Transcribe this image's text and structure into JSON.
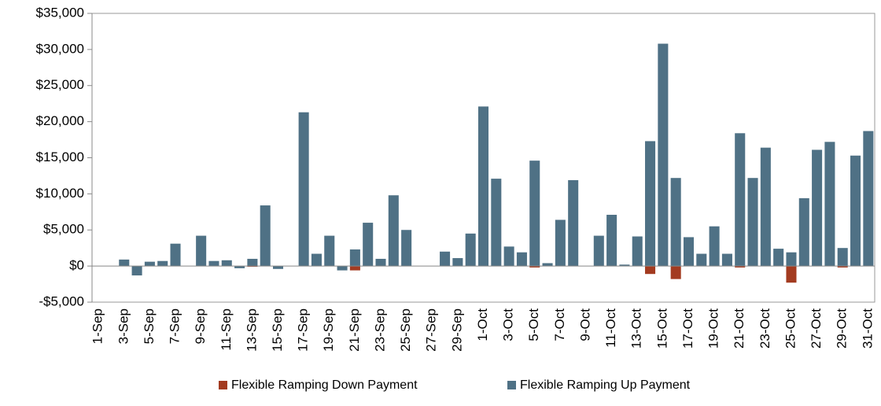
{
  "chart_data": {
    "type": "bar",
    "categories": [
      "1-Sep",
      null,
      "3-Sep",
      null,
      "5-Sep",
      null,
      "7-Sep",
      null,
      "9-Sep",
      null,
      "11-Sep",
      null,
      "13-Sep",
      null,
      "15-Sep",
      null,
      "17-Sep",
      null,
      "19-Sep",
      null,
      "21-Sep",
      null,
      "23-Sep",
      null,
      "25-Sep",
      null,
      "27-Sep",
      null,
      "29-Sep",
      null,
      "1-Oct",
      null,
      "3-Oct",
      null,
      "5-Oct",
      null,
      "7-Oct",
      null,
      "9-Oct",
      null,
      "11-Oct",
      null,
      "13-Oct",
      null,
      "15-Oct",
      null,
      "17-Oct",
      null,
      "19-Oct",
      null,
      "21-Oct",
      null,
      "23-Oct",
      null,
      "25-Oct",
      null,
      "27-Oct",
      null,
      "29-Oct",
      null,
      "31-Oct"
    ],
    "series": [
      {
        "name": "Flexible Ramping Down Payment",
        "color": "#a33b20",
        "values": [
          0,
          0,
          0,
          0,
          0,
          0,
          0,
          0,
          0,
          0,
          0,
          0,
          -100,
          0,
          0,
          0,
          0,
          0,
          0,
          0,
          -600,
          0,
          0,
          0,
          0,
          0,
          0,
          0,
          0,
          0,
          0,
          0,
          0,
          0,
          -200,
          0,
          0,
          0,
          0,
          0,
          0,
          0,
          0,
          -1100,
          0,
          -1800,
          0,
          0,
          0,
          0,
          -200,
          0,
          0,
          0,
          -2300,
          0,
          0,
          0,
          -200,
          0,
          0
        ]
      },
      {
        "name": "Flexible Ramping Up Payment",
        "color": "#4f7185",
        "values": [
          0,
          0,
          900,
          -1300,
          600,
          700,
          3100,
          0,
          4200,
          700,
          800,
          -300,
          1000,
          8400,
          -400,
          0,
          21300,
          1700,
          4200,
          -600,
          2300,
          6000,
          1000,
          9800,
          5000,
          0,
          0,
          2000,
          1100,
          4500,
          22100,
          12100,
          2700,
          1900,
          14600,
          400,
          6400,
          11900,
          0,
          4200,
          7100,
          200,
          4100,
          17300,
          30800,
          12200,
          4000,
          1700,
          5500,
          1700,
          18400,
          12200,
          16400,
          2400,
          1900,
          9400,
          16100,
          17200,
          2500,
          15300,
          18700
        ]
      }
    ],
    "ylim": [
      -5000,
      35000
    ],
    "yticks": [
      {
        "value": -5000,
        "label": "-$5,000"
      },
      {
        "value": 0,
        "label": "$0"
      },
      {
        "value": 5000,
        "label": "$5,000"
      },
      {
        "value": 10000,
        "label": "$10,000"
      },
      {
        "value": 15000,
        "label": "$15,000"
      },
      {
        "value": 20000,
        "label": "$20,000"
      },
      {
        "value": 25000,
        "label": "$25,000"
      },
      {
        "value": 30000,
        "label": "$30,000"
      },
      {
        "value": 35000,
        "label": "$35,000"
      }
    ],
    "grid": false,
    "legend": "bottom"
  }
}
